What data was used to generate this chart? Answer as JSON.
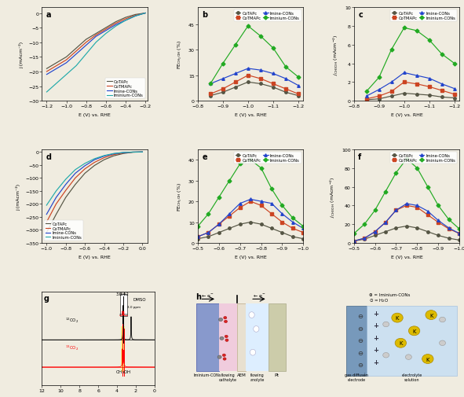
{
  "bg_color": "#f0ece0",
  "panel_a": {
    "label": "a",
    "xlabel": "E (V) vs. RHE",
    "ylabel": "j (mAcm⁻²)",
    "xlim": [
      -1.25,
      -0.18
    ],
    "ylim": [
      -30,
      2
    ],
    "xticks": [
      -1.2,
      -1.0,
      -0.8,
      -0.6,
      -0.4,
      -0.2
    ],
    "series": {
      "CoTAPc": {
        "color": "#555544",
        "x": [
          -1.2,
          -1.1,
          -1.0,
          -0.9,
          -0.8,
          -0.7,
          -0.6,
          -0.5,
          -0.4,
          -0.3,
          -0.2
        ],
        "y": [
          -19,
          -17,
          -15,
          -12,
          -9,
          -7,
          -5,
          -3,
          -1.5,
          -0.5,
          0
        ]
      },
      "CoTMAPc": {
        "color": "#cc4422",
        "x": [
          -1.2,
          -1.1,
          -1.0,
          -0.9,
          -0.8,
          -0.7,
          -0.6,
          -0.5,
          -0.4,
          -0.3,
          -0.2
        ],
        "y": [
          -20,
          -18,
          -16,
          -13,
          -10,
          -7.5,
          -5.5,
          -3.5,
          -2,
          -0.8,
          0
        ]
      },
      "Imine-CONs": {
        "color": "#2244cc",
        "x": [
          -1.2,
          -1.1,
          -1.0,
          -0.9,
          -0.8,
          -0.7,
          -0.6,
          -0.5,
          -0.4,
          -0.3,
          -0.2
        ],
        "y": [
          -21,
          -19,
          -17,
          -14,
          -11,
          -8,
          -6,
          -4,
          -2.5,
          -1,
          0
        ]
      },
      "Iminium-CONs": {
        "color": "#22aaaa",
        "x": [
          -1.2,
          -1.1,
          -1.0,
          -0.9,
          -0.8,
          -0.7,
          -0.6,
          -0.5,
          -0.4,
          -0.3,
          -0.2
        ],
        "y": [
          -27,
          -24,
          -21,
          -18,
          -14,
          -10,
          -7,
          -4.5,
          -2.5,
          -1,
          0
        ]
      }
    }
  },
  "panel_b": {
    "label": "b",
    "xlabel": "E (V) vs. RHE",
    "ylabel": "FE$_{\\mathrm{CH_3OH}}$ (%)",
    "xlim": [
      -0.82,
      -1.22
    ],
    "ylim": [
      0,
      55
    ],
    "yticks": [
      0,
      15,
      30,
      45
    ],
    "xticks": [
      -0.8,
      -0.9,
      -1.0,
      -1.1,
      -1.2
    ],
    "series": {
      "CoTAPc": {
        "color": "#555544",
        "marker": "o",
        "x": [
          -0.85,
          -0.9,
          -0.95,
          -1.0,
          -1.05,
          -1.1,
          -1.15,
          -1.2
        ],
        "y": [
          3,
          5,
          8,
          11,
          10,
          8,
          5,
          3
        ]
      },
      "CoTMAPc": {
        "color": "#cc4422",
        "marker": "s",
        "x": [
          -0.85,
          -0.9,
          -0.95,
          -1.0,
          -1.05,
          -1.1,
          -1.15,
          -1.2
        ],
        "y": [
          4,
          7,
          11,
          15,
          13,
          10,
          7,
          4
        ]
      },
      "Imine-CONs": {
        "color": "#2244cc",
        "marker": "^",
        "x": [
          -0.85,
          -0.9,
          -0.95,
          -1.0,
          -1.05,
          -1.1,
          -1.15,
          -1.2
        ],
        "y": [
          10,
          13,
          16,
          19,
          18,
          16,
          13,
          9
        ]
      },
      "Iminium-CONs": {
        "color": "#22aa22",
        "marker": "D",
        "x": [
          -0.85,
          -0.9,
          -0.95,
          -1.0,
          -1.05,
          -1.1,
          -1.15,
          -1.2
        ],
        "y": [
          10,
          22,
          33,
          44,
          38,
          31,
          20,
          14
        ]
      }
    }
  },
  "panel_c": {
    "label": "c",
    "xlabel": "E (V) vs. RHE",
    "ylabel": "j$_{\\mathrm{CH_3OH}}$ (mAcm⁻²)",
    "xlim": [
      -0.82,
      -1.22
    ],
    "ylim": [
      0,
      10
    ],
    "yticks": [
      0,
      2,
      4,
      6,
      8,
      10
    ],
    "xticks": [
      -0.8,
      -0.9,
      -1.0,
      -1.1,
      -1.2
    ],
    "series": {
      "CoTAPc": {
        "color": "#555544",
        "marker": "o",
        "x": [
          -0.85,
          -0.9,
          -0.95,
          -1.0,
          -1.05,
          -1.1,
          -1.15,
          -1.2
        ],
        "y": [
          0.1,
          0.2,
          0.5,
          0.8,
          0.7,
          0.6,
          0.4,
          0.3
        ]
      },
      "CoTMAPc": {
        "color": "#cc4422",
        "marker": "s",
        "x": [
          -0.85,
          -0.9,
          -0.95,
          -1.0,
          -1.05,
          -1.1,
          -1.15,
          -1.2
        ],
        "y": [
          0.2,
          0.5,
          1.0,
          2.0,
          1.8,
          1.5,
          1.1,
          0.7
        ]
      },
      "Imine-CONs": {
        "color": "#2244cc",
        "marker": "^",
        "x": [
          -0.85,
          -0.9,
          -0.95,
          -1.0,
          -1.05,
          -1.1,
          -1.15,
          -1.2
        ],
        "y": [
          0.5,
          1.2,
          2.0,
          3.0,
          2.7,
          2.4,
          1.8,
          1.3
        ]
      },
      "Iminium-CONs": {
        "color": "#22aa22",
        "marker": "D",
        "x": [
          -0.85,
          -0.9,
          -0.95,
          -1.0,
          -1.05,
          -1.1,
          -1.15,
          -1.2
        ],
        "y": [
          1.0,
          2.5,
          5.5,
          7.8,
          7.5,
          6.5,
          5.0,
          4.0
        ]
      }
    }
  },
  "panel_d": {
    "label": "d",
    "xlabel": "E (V) vs. RHE",
    "ylabel": "j (mAcm⁻²)",
    "xlim": [
      -1.05,
      0.05
    ],
    "ylim": [
      -350,
      10
    ],
    "xticks": [
      -1.0,
      -0.8,
      -0.6,
      -0.4,
      -0.2,
      0.0
    ],
    "series": {
      "CoTAPc": {
        "color": "#555544",
        "x": [
          -1.0,
          -0.9,
          -0.8,
          -0.7,
          -0.6,
          -0.5,
          -0.4,
          -0.3,
          -0.2,
          -0.1,
          0.0
        ],
        "y": [
          -310,
          -240,
          -175,
          -125,
          -82,
          -52,
          -30,
          -15,
          -6,
          -1,
          0
        ]
      },
      "CoTMAPc": {
        "color": "#cc4422",
        "x": [
          -1.0,
          -0.9,
          -0.8,
          -0.7,
          -0.6,
          -0.5,
          -0.4,
          -0.3,
          -0.2,
          -0.1,
          0.0
        ],
        "y": [
          -270,
          -200,
          -148,
          -100,
          -65,
          -40,
          -22,
          -10,
          -4,
          -0.5,
          0
        ]
      },
      "Imine-CONs": {
        "color": "#2244cc",
        "x": [
          -1.0,
          -0.9,
          -0.8,
          -0.7,
          -0.6,
          -0.5,
          -0.4,
          -0.3,
          -0.2,
          -0.1,
          0.0
        ],
        "y": [
          -240,
          -175,
          -125,
          -82,
          -53,
          -30,
          -16,
          -7,
          -2.5,
          -0.5,
          0
        ]
      },
      "Iminium-CONs": {
        "color": "#22aaaa",
        "x": [
          -1.0,
          -0.9,
          -0.8,
          -0.7,
          -0.6,
          -0.5,
          -0.4,
          -0.3,
          -0.2,
          -0.1,
          0.0
        ],
        "y": [
          -205,
          -150,
          -105,
          -68,
          -44,
          -26,
          -14,
          -6,
          -2,
          -0.5,
          0
        ]
      }
    }
  },
  "panel_e": {
    "label": "e",
    "xlabel": "E (V) vs. RHE",
    "ylabel": "FE$_{\\mathrm{CH_3OH}}$ (%)",
    "xlim": [
      -0.5,
      -1.0
    ],
    "ylim": [
      0,
      45
    ],
    "yticks": [
      0,
      10,
      20,
      30,
      40
    ],
    "xticks": [
      -0.5,
      -0.6,
      -0.7,
      -0.8,
      -0.9,
      -1.0
    ],
    "series": {
      "CoTAPc": {
        "color": "#555544",
        "marker": "o",
        "x": [
          -0.5,
          -0.55,
          -0.6,
          -0.65,
          -0.7,
          -0.75,
          -0.8,
          -0.85,
          -0.9,
          -0.95,
          -1.0
        ],
        "y": [
          2,
          3,
          5,
          7,
          9,
          10,
          9,
          7,
          5,
          3,
          2
        ]
      },
      "CoTMAPc": {
        "color": "#cc4422",
        "marker": "s",
        "x": [
          -0.5,
          -0.55,
          -0.6,
          -0.65,
          -0.7,
          -0.75,
          -0.8,
          -0.85,
          -0.9,
          -0.95,
          -1.0
        ],
        "y": [
          3,
          5,
          9,
          13,
          17,
          20,
          18,
          14,
          10,
          7,
          5
        ]
      },
      "Imine-CONs": {
        "color": "#2244cc",
        "marker": "^",
        "x": [
          -0.5,
          -0.55,
          -0.6,
          -0.65,
          -0.7,
          -0.75,
          -0.8,
          -0.85,
          -0.9,
          -0.95,
          -1.0
        ],
        "y": [
          3,
          5,
          9,
          14,
          19,
          21,
          20,
          19,
          14,
          10,
          7
        ]
      },
      "Iminium-CONs": {
        "color": "#22aa22",
        "marker": "D",
        "x": [
          -0.5,
          -0.55,
          -0.6,
          -0.65,
          -0.7,
          -0.75,
          -0.8,
          -0.85,
          -0.9,
          -0.95,
          -1.0
        ],
        "y": [
          8,
          14,
          22,
          30,
          38,
          40,
          36,
          26,
          18,
          12,
          8
        ]
      }
    }
  },
  "panel_f": {
    "label": "f",
    "xlabel": "E (V) vs. RHE",
    "ylabel": "j$_{\\mathrm{CH_3OH}}$ (mAcm⁻²)",
    "xlim": [
      -0.5,
      -1.0
    ],
    "ylim": [
      0,
      100
    ],
    "yticks": [
      0,
      20,
      40,
      60,
      80,
      100
    ],
    "xticks": [
      -0.5,
      -0.6,
      -0.7,
      -0.8,
      -0.9,
      -1.0
    ],
    "series": {
      "CoTAPc": {
        "color": "#555544",
        "marker": "o",
        "x": [
          -0.5,
          -0.55,
          -0.6,
          -0.65,
          -0.7,
          -0.75,
          -0.8,
          -0.85,
          -0.9,
          -0.95,
          -1.0
        ],
        "y": [
          2,
          4,
          8,
          12,
          16,
          18,
          16,
          12,
          8,
          5,
          3
        ]
      },
      "CoTMAPc": {
        "color": "#cc4422",
        "marker": "s",
        "x": [
          -0.5,
          -0.55,
          -0.6,
          -0.65,
          -0.7,
          -0.75,
          -0.8,
          -0.85,
          -0.9,
          -0.95,
          -1.0
        ],
        "y": [
          2,
          5,
          12,
          22,
          35,
          40,
          38,
          30,
          22,
          15,
          10
        ]
      },
      "Imine-CONs": {
        "color": "#2244cc",
        "marker": "^",
        "x": [
          -0.5,
          -0.55,
          -0.6,
          -0.65,
          -0.7,
          -0.75,
          -0.8,
          -0.85,
          -0.9,
          -0.95,
          -1.0
        ],
        "y": [
          2,
          5,
          12,
          22,
          35,
          42,
          40,
          34,
          24,
          16,
          10
        ]
      },
      "Iminium-CONs": {
        "color": "#22aa22",
        "marker": "D",
        "x": [
          -0.5,
          -0.55,
          -0.6,
          -0.65,
          -0.7,
          -0.75,
          -0.8,
          -0.85,
          -0.9,
          -0.95,
          -1.0
        ],
        "y": [
          10,
          20,
          35,
          55,
          75,
          90,
          80,
          60,
          40,
          25,
          15
        ]
      }
    }
  }
}
